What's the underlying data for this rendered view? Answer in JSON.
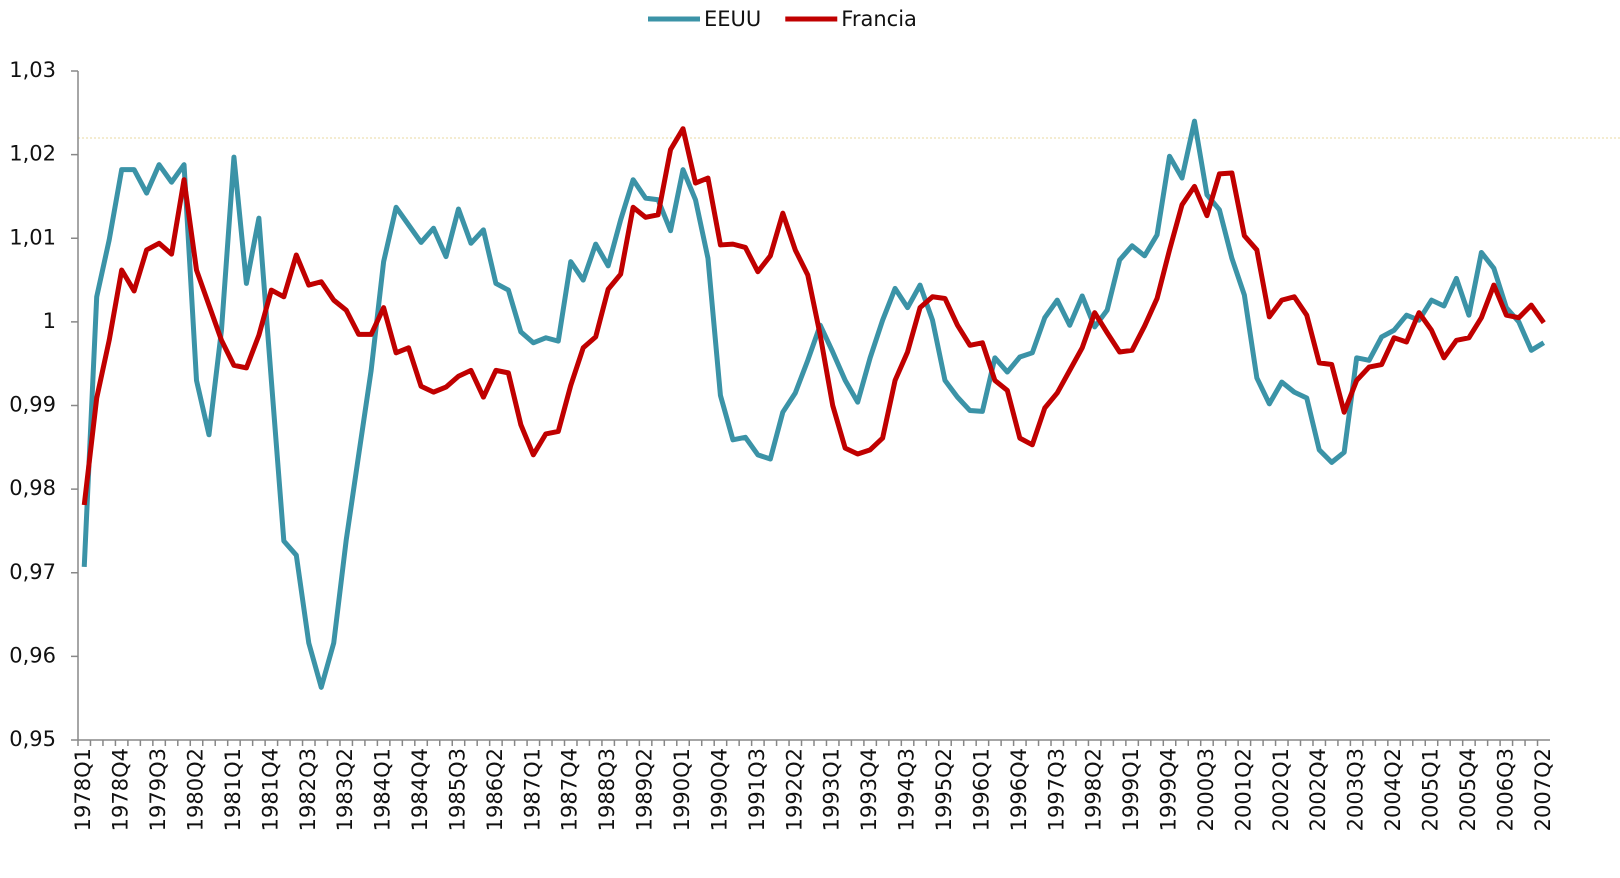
{
  "chart_data": {
    "type": "line",
    "categories": [
      "1978Q1",
      null,
      null,
      "1978Q4",
      null,
      null,
      "1979Q3",
      null,
      null,
      "1980Q2",
      null,
      null,
      "1981Q1",
      null,
      null,
      "1981Q4",
      null,
      null,
      "1982Q3",
      null,
      null,
      "1983Q2",
      null,
      null,
      "1984Q1",
      null,
      null,
      "1984Q4",
      null,
      null,
      "1985Q3",
      null,
      null,
      "1986Q2",
      null,
      null,
      "1987Q1",
      null,
      null,
      "1987Q4",
      null,
      null,
      "1988Q3",
      null,
      null,
      "1989Q2",
      null,
      null,
      "1990Q1",
      null,
      null,
      "1990Q4",
      null,
      null,
      "1991Q3",
      null,
      null,
      "1992Q2",
      null,
      null,
      "1993Q1",
      null,
      null,
      "1993Q4",
      null,
      null,
      "1994Q3",
      null,
      null,
      "1995Q2",
      null,
      null,
      "1996Q1",
      null,
      null,
      "1996Q4",
      null,
      null,
      "1997Q3",
      null,
      null,
      "1998Q2",
      null,
      null,
      "1999Q1",
      null,
      null,
      "1999Q4",
      null,
      null,
      "2000Q3",
      null,
      null,
      "2001Q2",
      null,
      null,
      "2002Q1",
      null,
      null,
      "2002Q4",
      null,
      null,
      "2003Q3",
      null,
      null,
      "2004Q2",
      null,
      null,
      "2005Q1",
      null,
      null,
      "2005Q4",
      null,
      null,
      "2006Q3",
      null,
      null,
      "2007Q2"
    ],
    "series": [
      {
        "name": "EEUU",
        "color": "#3b93a7",
        "values": [
          0.9707,
          1.003,
          1.0098,
          1.0182,
          1.0182,
          1.0154,
          1.0188,
          1.0167,
          1.0188,
          0.993,
          0.9865,
          0.999,
          1.0197,
          1.0046,
          1.0124,
          0.993,
          0.9738,
          0.9721,
          0.9616,
          0.9563,
          0.9616,
          0.9739,
          0.9841,
          0.9942,
          1.0072,
          1.0137,
          1.0116,
          1.0095,
          1.0112,
          1.0078,
          1.0135,
          1.0094,
          1.011,
          1.0046,
          1.0038,
          0.9988,
          0.9975,
          0.9981,
          0.9977,
          1.0072,
          1.005,
          1.0093,
          1.0067,
          1.0122,
          1.017,
          1.0148,
          1.0146,
          1.0109,
          1.0182,
          1.0146,
          1.0076,
          0.9912,
          0.9859,
          0.9862,
          0.9841,
          0.9836,
          0.9892,
          0.9915,
          0.9954,
          0.9996,
          0.9964,
          0.993,
          0.9904,
          0.9957,
          1.0002,
          1.004,
          1.0017,
          1.0044,
          1.0002,
          0.993,
          0.991,
          0.9894,
          0.9893,
          0.9957,
          0.994,
          0.9958,
          0.9963,
          1.0005,
          1.0026,
          0.9996,
          1.0031,
          0.9994,
          1.0014,
          1.0074,
          1.0091,
          1.0079,
          1.0104,
          1.0198,
          1.0172,
          1.024,
          1.0152,
          1.0134,
          1.0076,
          1.0032,
          0.9933,
          0.9902,
          0.9928,
          0.9916,
          0.9909,
          0.9847,
          0.9832,
          0.9844,
          0.9957,
          0.9954,
          0.9982,
          0.999,
          1.0008,
          1.0002,
          1.0026,
          1.0019,
          1.0052,
          1.0008,
          1.0083,
          1.0064,
          1.0017,
          1.0,
          0.9966,
          0.9975
        ]
      },
      {
        "name": "Francia",
        "color": "#c00000",
        "values": [
          0.9781,
          0.9909,
          0.9978,
          1.0062,
          1.0037,
          1.0086,
          1.0094,
          1.0081,
          1.017,
          1.0062,
          1.002,
          0.9978,
          0.9948,
          0.9945,
          0.9984,
          1.0038,
          1.003,
          1.008,
          1.0044,
          1.0048,
          1.0026,
          1.0014,
          0.9985,
          0.9985,
          1.0017,
          0.9963,
          0.9969,
          0.9923,
          0.9916,
          0.9922,
          0.9935,
          0.9942,
          0.991,
          0.9942,
          0.9939,
          0.9877,
          0.9841,
          0.9866,
          0.9869,
          0.9924,
          0.9969,
          0.9982,
          1.0039,
          1.0057,
          1.0137,
          1.0125,
          1.0128,
          1.0206,
          1.0231,
          1.0166,
          1.0172,
          1.0092,
          1.0093,
          1.0089,
          1.006,
          1.0079,
          1.013,
          1.0086,
          1.0056,
          0.9984,
          0.99,
          0.9849,
          0.9842,
          0.9847,
          0.9861,
          0.993,
          0.9964,
          1.0017,
          1.003,
          1.0028,
          0.9996,
          0.9972,
          0.9975,
          0.993,
          0.9918,
          0.9861,
          0.9853,
          0.9897,
          0.9915,
          0.9942,
          0.9969,
          1.0011,
          0.9987,
          0.9964,
          0.9966,
          0.9995,
          1.0028,
          1.0086,
          1.014,
          1.0162,
          1.0127,
          1.0177,
          1.0178,
          1.0103,
          1.0086,
          1.0006,
          1.0026,
          1.003,
          1.0008,
          0.9951,
          0.9949,
          0.9892,
          0.993,
          0.9946,
          0.9949,
          0.9981,
          0.9976,
          1.0011,
          0.999,
          0.9957,
          0.9978,
          0.9981,
          1.0005,
          1.0044,
          1.0008,
          1.0005,
          1.002,
          0.9999
        ]
      }
    ],
    "ylim": [
      0.95,
      1.03
    ],
    "yticks": [
      {
        "value": 0.95,
        "label": "0,95"
      },
      {
        "value": 0.96,
        "label": "0,96"
      },
      {
        "value": 0.97,
        "label": "0,97"
      },
      {
        "value": 0.98,
        "label": "0,98"
      },
      {
        "value": 0.99,
        "label": "0,99"
      },
      1,
      {
        "value": 1.01,
        "label": "1,01"
      },
      {
        "value": 1.02,
        "label": "1,02"
      },
      {
        "value": 1.03,
        "label": "1,03"
      }
    ],
    "legend": "top"
  }
}
